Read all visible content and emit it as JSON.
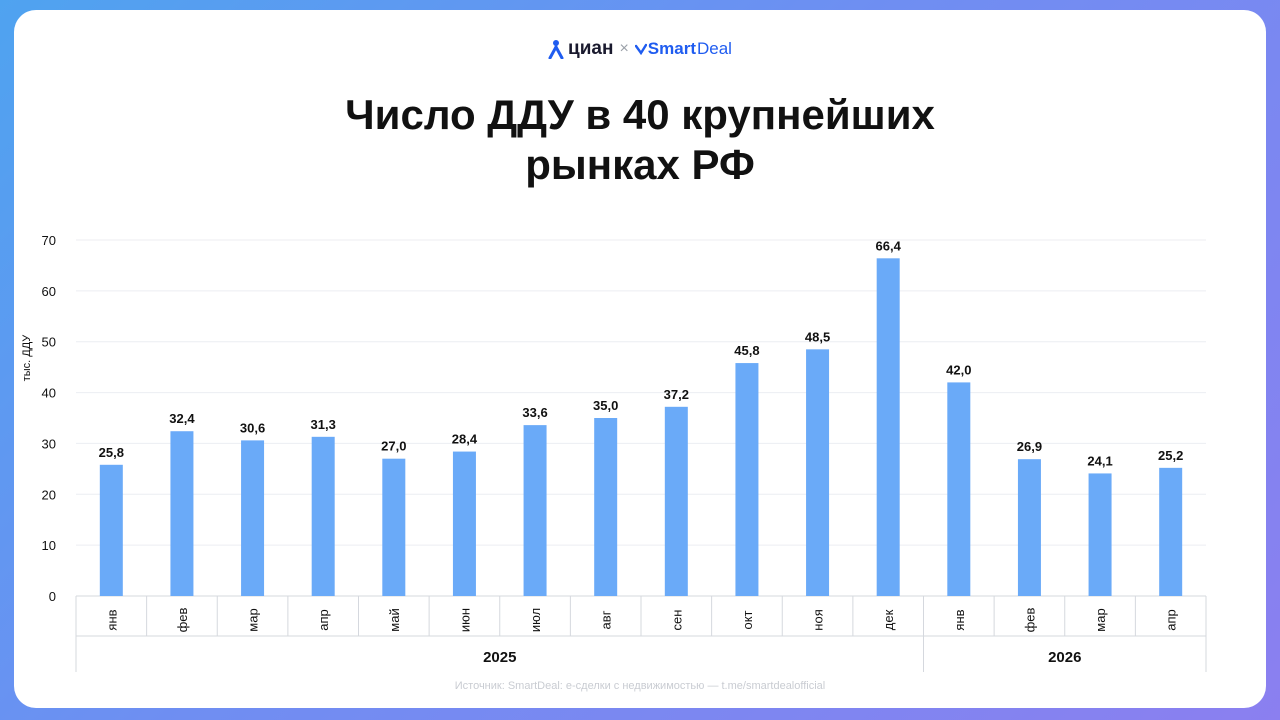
{
  "brand": {
    "cian_name": "циан",
    "times": "×",
    "smartdeal_prefix": "Smart",
    "smartdeal_suffix": "Deal"
  },
  "title_line1": "Число ДДУ в 40 крупнейших",
  "title_line2": "рынках РФ",
  "source": "Источник: SmartDeal: е-сделки с недвижимостью — t.me/smartdealofficial",
  "colors": {
    "bar": "#6aaaf8",
    "grid": "#eceef2",
    "text": "#111111"
  },
  "chart_data": {
    "type": "bar",
    "ylabel": "тыс. ДДУ",
    "ylim": [
      0,
      70
    ],
    "yticks": [
      0,
      10,
      20,
      30,
      40,
      50,
      60,
      70
    ],
    "categories": [
      "янв",
      "фев",
      "мар",
      "апр",
      "май",
      "июн",
      "июл",
      "авг",
      "сен",
      "окт",
      "ноя",
      "дек",
      "янв",
      "фев",
      "мар",
      "апр"
    ],
    "values": [
      25.8,
      32.4,
      30.6,
      31.3,
      27.0,
      28.4,
      33.6,
      35.0,
      37.2,
      45.8,
      48.5,
      66.4,
      42.0,
      26.9,
      24.1,
      25.2
    ],
    "value_labels": [
      "25,8",
      "32,4",
      "30,6",
      "31,3",
      "27,0",
      "28,4",
      "33,6",
      "35,0",
      "37,2",
      "45,8",
      "48,5",
      "66,4",
      "42,0",
      "26,9",
      "24,1",
      "25,2"
    ],
    "groups": [
      {
        "label": "2025",
        "count": 12
      },
      {
        "label": "2026",
        "count": 4
      }
    ],
    "grid": true,
    "legend": "none"
  }
}
